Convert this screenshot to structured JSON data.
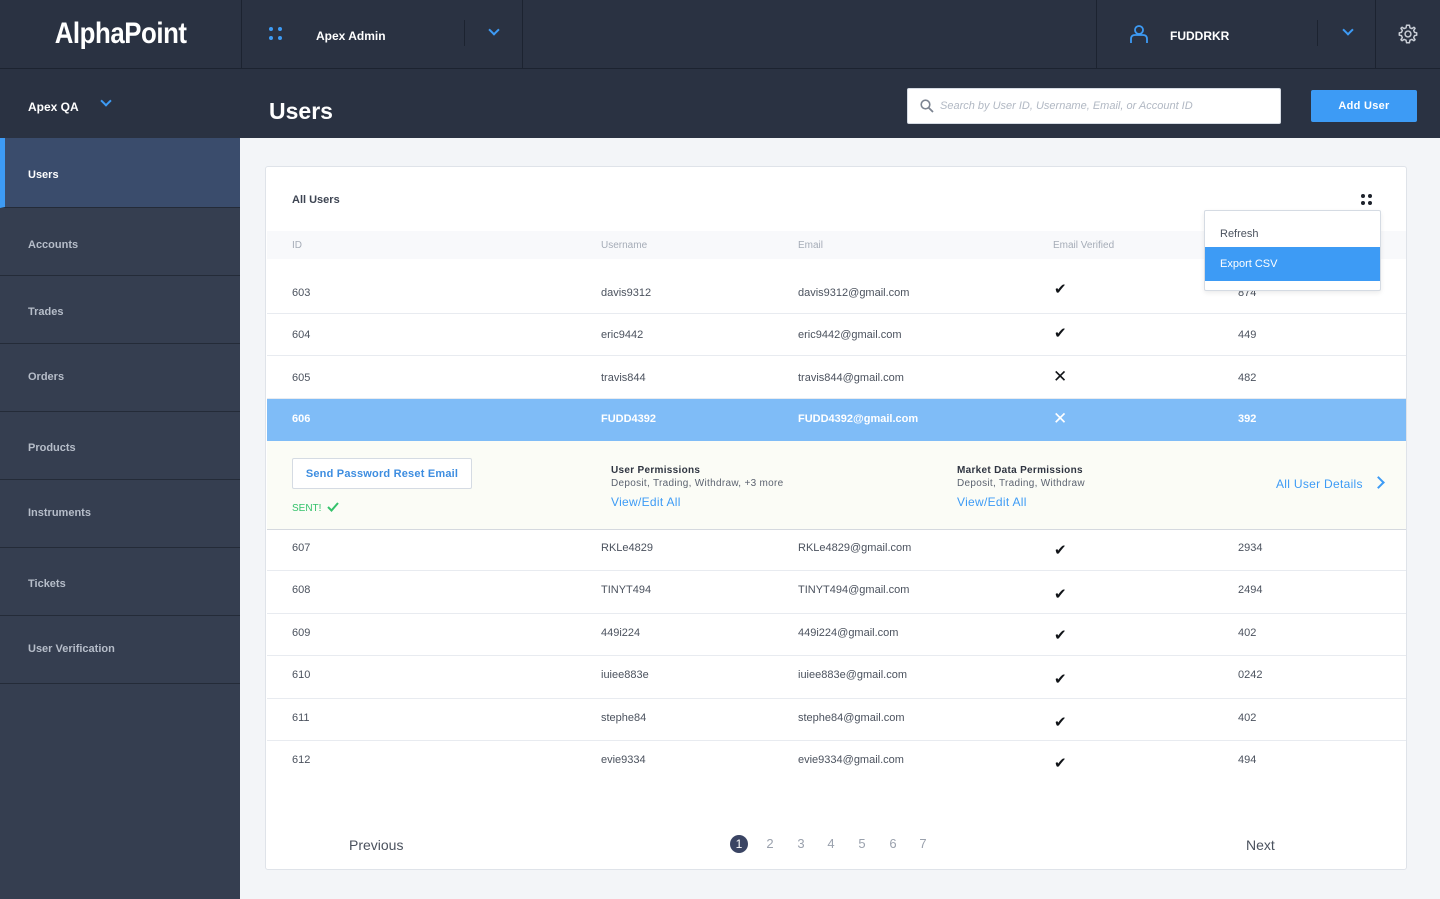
{
  "brand": {
    "logo": "AlphaPoint"
  },
  "topbar": {
    "org_name": "Apex Admin",
    "username": "FUDDRKR"
  },
  "subheader": {
    "environment": "Apex QA",
    "page_title": "Users"
  },
  "search": {
    "placeholder": "Search by User ID, Username, Email, or Account ID",
    "value": ""
  },
  "actions": {
    "add_user": "Add User"
  },
  "sidebar": {
    "items": [
      {
        "label": "Users",
        "active": true
      },
      {
        "label": "Accounts"
      },
      {
        "label": "Trades"
      },
      {
        "label": "Orders"
      },
      {
        "label": "Products"
      },
      {
        "label": "Instruments"
      },
      {
        "label": "Tickets"
      },
      {
        "label": "User Verification"
      }
    ]
  },
  "card": {
    "title": "All Users",
    "columns": [
      "ID",
      "Username",
      "Email",
      "Email Verified",
      ""
    ],
    "rows": [
      {
        "id": "603",
        "username": "davis9312",
        "email": "davis9312@gmail.com",
        "verified": true,
        "value": "874"
      },
      {
        "id": "604",
        "username": "eric9442",
        "email": "eric9442@gmail.com",
        "verified": true,
        "value": "449"
      },
      {
        "id": "605",
        "username": "travis844",
        "email": "travis844@gmail.com",
        "verified": false,
        "value": "482"
      },
      {
        "id": "606",
        "username": "FUDD4392",
        "email": "FUDD4392@gmail.com",
        "verified": false,
        "value": "392",
        "selected": true
      },
      {
        "id": "607",
        "username": "RKLe4829",
        "email": "RKLe4829@gmail.com",
        "verified": true,
        "value": "2934"
      },
      {
        "id": "608",
        "username": "TINYT494",
        "email": "TINYT494@gmail.com",
        "verified": true,
        "value": "2494"
      },
      {
        "id": "609",
        "username": "449i224",
        "email": "449i224@gmail.com",
        "verified": true,
        "value": "402"
      },
      {
        "id": "610",
        "username": "iuiee883e",
        "email": "iuiee883e@gmail.com",
        "verified": true,
        "value": "0242"
      },
      {
        "id": "611",
        "username": "stephe84",
        "email": "stephe84@gmail.com",
        "verified": true,
        "value": "402"
      },
      {
        "id": "612",
        "username": "evie9334",
        "email": "evie9334@gmail.com",
        "verified": true,
        "value": "494"
      }
    ],
    "expanded": {
      "reset_button": "Send Password Reset Email",
      "sent_label": "SENT!",
      "user_permissions": {
        "title": "User Permissions",
        "list": "Deposit, Trading, Withdraw, +3 more",
        "link": "View/Edit All"
      },
      "market_permissions": {
        "title": "Market Data Permissions",
        "list": "Deposit, Trading, Withdraw",
        "link": "View/Edit All"
      },
      "details_link": "All User Details"
    },
    "menu": {
      "items": [
        "Refresh",
        "Export CSV"
      ],
      "active_index": 1
    },
    "pagination": {
      "previous": "Previous",
      "next": "Next",
      "pages": [
        "1",
        "2",
        "3",
        "4",
        "5",
        "6",
        "7"
      ],
      "current": "1"
    }
  },
  "colors": {
    "accent": "#3d9bf5",
    "topbar": "#2a3242",
    "sidebar": "#353e50",
    "selected_row": "#7fbcf7",
    "success": "#34c26b"
  }
}
